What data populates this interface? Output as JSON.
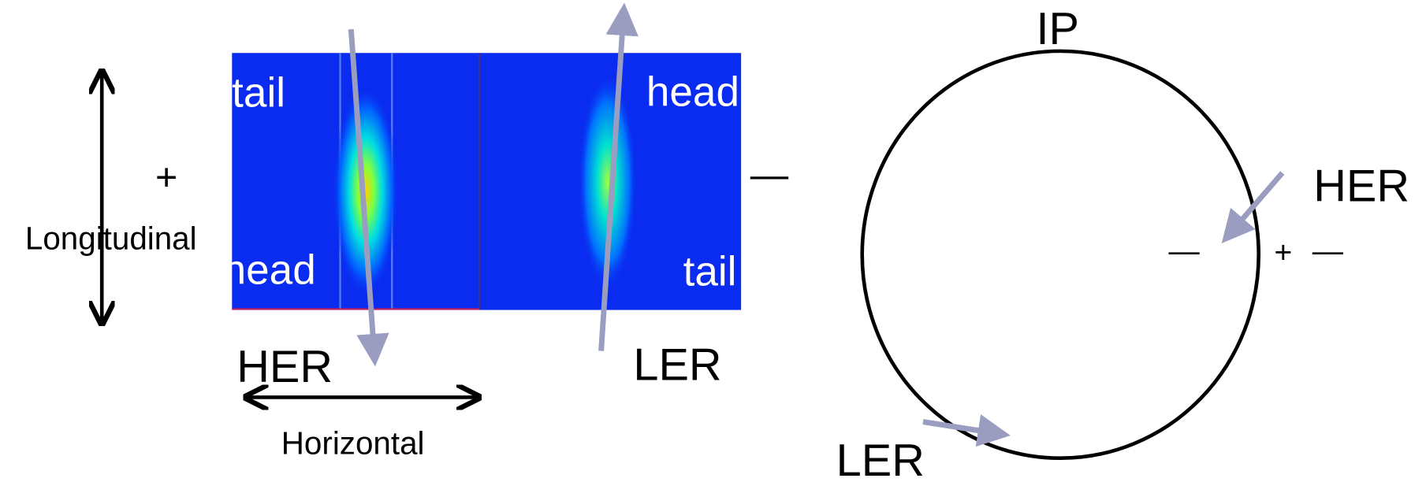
{
  "beam_image": {
    "left_top": "tail",
    "left_bottom": "head",
    "right_top": "head",
    "right_bottom": "tail"
  },
  "left_labels": {
    "plus": "+",
    "minus": "—",
    "longitudinal": "Longitudinal",
    "her": "HER",
    "ler": "LER",
    "horizontal": "Horizontal"
  },
  "ring": {
    "ip": "IP",
    "her": "HER",
    "minus_inner": "—",
    "plus": "+",
    "minus_outer": "—",
    "ler": "LER"
  }
}
